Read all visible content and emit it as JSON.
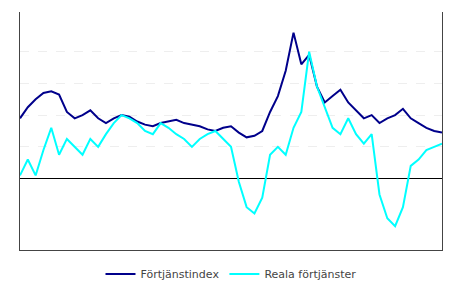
{
  "chart_data": {
    "type": "line",
    "categories": [
      null,
      null,
      null,
      null,
      null,
      null,
      null,
      null,
      null,
      null,
      null,
      null,
      null,
      null,
      null,
      null,
      null,
      null,
      null,
      null,
      null,
      null,
      null,
      null,
      null,
      null,
      null,
      null,
      null,
      null,
      null,
      null,
      null,
      null,
      null,
      null,
      null,
      null,
      null,
      null,
      null,
      null,
      null,
      null,
      null,
      null,
      null,
      null,
      null,
      null,
      null,
      null,
      null,
      null,
      null
    ],
    "series": [
      {
        "name": "Förtjänstindex",
        "color": "#00008B",
        "values": [
          3.8,
          4.5,
          5.0,
          5.4,
          5.5,
          5.3,
          4.2,
          3.8,
          4.0,
          4.3,
          3.8,
          3.5,
          3.8,
          4.0,
          3.9,
          3.6,
          3.4,
          3.3,
          3.5,
          3.6,
          3.7,
          3.5,
          3.4,
          3.3,
          3.1,
          3.0,
          3.2,
          3.3,
          2.9,
          2.6,
          2.7,
          3.0,
          4.2,
          5.2,
          6.8,
          9.2,
          7.2,
          7.8,
          5.8,
          4.8,
          5.2,
          5.6,
          4.8,
          4.3,
          3.8,
          4.0,
          3.5,
          3.8,
          4.0,
          4.4,
          3.8,
          3.5,
          3.2,
          3.0,
          2.9
        ]
      },
      {
        "name": "Reala förtjänster",
        "color": "#00FFFF",
        "values": [
          0.2,
          1.2,
          0.2,
          1.8,
          3.2,
          1.5,
          2.5,
          2.0,
          1.5,
          2.5,
          2.0,
          2.8,
          3.5,
          4.0,
          3.8,
          3.5,
          3.0,
          2.8,
          3.5,
          3.2,
          2.8,
          2.5,
          2.0,
          2.5,
          2.8,
          3.0,
          2.5,
          2.0,
          -0.2,
          -1.8,
          -2.2,
          -1.2,
          1.5,
          2.0,
          1.5,
          3.2,
          4.2,
          8.0,
          5.8,
          4.5,
          3.2,
          2.8,
          3.8,
          2.8,
          2.2,
          2.8,
          -1.0,
          -2.5,
          -3.0,
          -1.8,
          0.8,
          1.2,
          1.8,
          2.0,
          2.2
        ]
      }
    ],
    "ylim": [
      -4.5,
      10.5
    ],
    "yticks": [
      2,
      4,
      6,
      8
    ],
    "grid": true,
    "legend": "bottom",
    "tick_labels": false
  }
}
